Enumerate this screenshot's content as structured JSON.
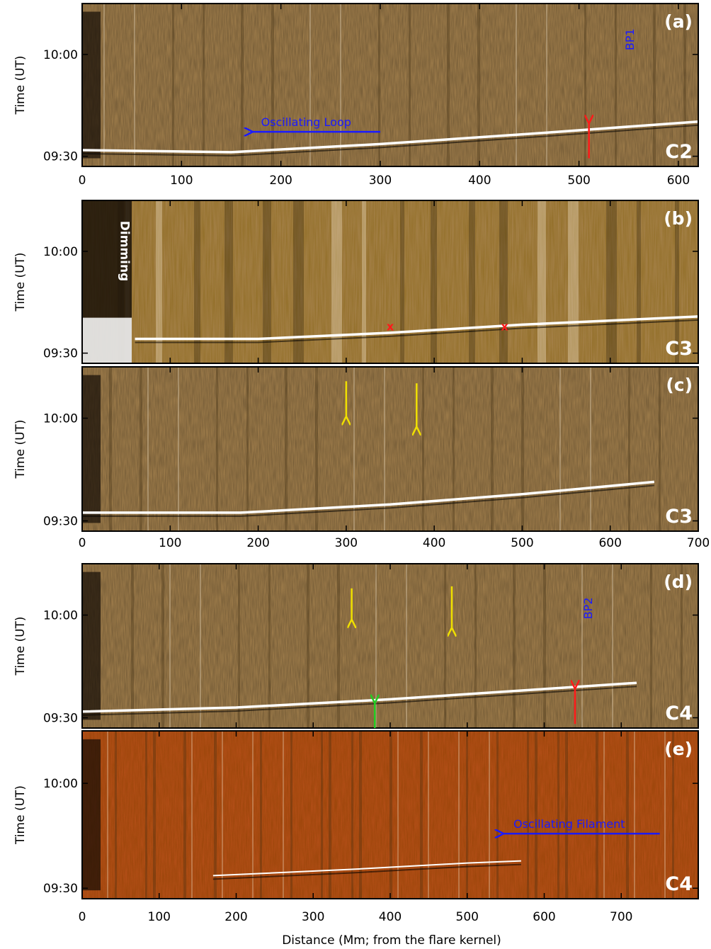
{
  "figure": {
    "xlabel": "Distance (Mm; from the flare kernel)",
    "ylabel": "Time (UT)",
    "colors": {
      "panel_brown": "#a8844f",
      "panel_red": "#b8501a",
      "blue_arrow": "#1a1aff",
      "red_arrow": "#ff1a1a",
      "yellow_arrow": "#f0e000",
      "green_arrow": "#22cc22"
    },
    "panels": [
      {
        "tag": "(a)",
        "channel": "C2",
        "xlim": [
          0,
          620
        ],
        "ylim": [
          9.45,
          10.25
        ],
        "xticks": [
          "0",
          "100",
          "200",
          "300",
          "400",
          "500",
          "600"
        ],
        "yticks": [
          "09:30",
          "10:00"
        ],
        "show_xticks": true,
        "annotations": {
          "label_text": "Oscillating Loop",
          "bp_label": "BP1"
        }
      },
      {
        "tag": "(b)",
        "channel": "C3",
        "xlim": [
          0,
          700
        ],
        "ylim": [
          9.45,
          10.25
        ],
        "yticks": [
          "09:30",
          "10:00"
        ],
        "show_xticks": false,
        "annotations": {
          "label_text": "Dimming",
          "markers": [
            "x",
            "x"
          ]
        }
      },
      {
        "tag": "(c)",
        "channel": "C3",
        "xlim": [
          0,
          700
        ],
        "ylim": [
          9.45,
          10.25
        ],
        "xticks": [
          "0",
          "100",
          "200",
          "300",
          "400",
          "500",
          "600",
          "700"
        ],
        "yticks": [
          "09:30",
          "10:00"
        ],
        "show_xticks": true
      },
      {
        "tag": "(d)",
        "channel": "C4",
        "xlim": [
          0,
          800
        ],
        "ylim": [
          9.45,
          10.25
        ],
        "yticks": [
          "09:30",
          "10:00"
        ],
        "show_xticks": false,
        "annotations": {
          "bp_label": "BP2"
        }
      },
      {
        "tag": "(e)",
        "channel": "C4",
        "xlim": [
          0,
          800
        ],
        "ylim": [
          9.45,
          10.25
        ],
        "xticks": [
          "0",
          "100",
          "200",
          "300",
          "400",
          "500",
          "600",
          "700"
        ],
        "yticks": [
          "09:30",
          "10:00"
        ],
        "show_xticks": true,
        "annotations": {
          "label_text": "Oscillating Filament"
        }
      }
    ]
  }
}
